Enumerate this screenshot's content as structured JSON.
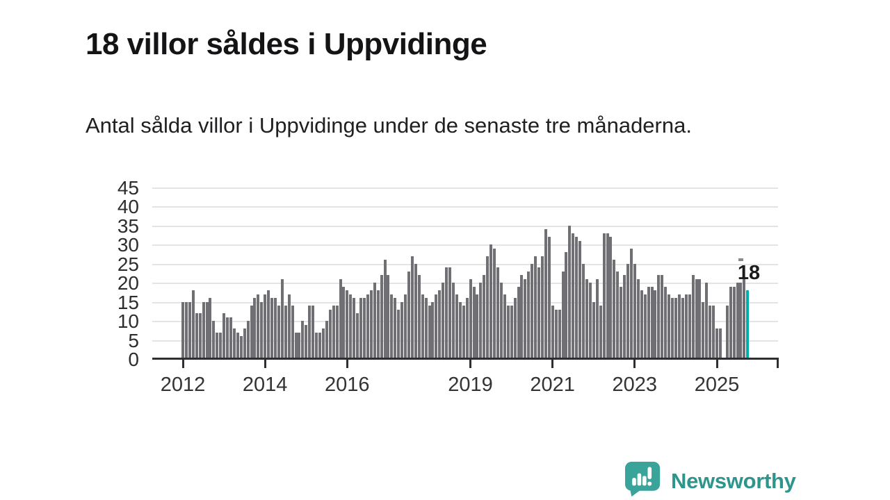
{
  "header": {
    "title": "18 villor såldes i Uppvidinge",
    "subtitle": "Antal sålda villor i Uppvidinge under de senaste tre månaderna."
  },
  "branding": {
    "name": "Newsworthy",
    "icon": "newsworthy-speech-bubble-chart-icon"
  },
  "colors": {
    "bar": "#707074",
    "highlight": "#00b0a8",
    "axis": "#2f2f33",
    "grid": "#e4e4e4",
    "text": "#2d2d30",
    "brand_teal_icon": "#3aa39a",
    "brand_teal_text": "#2e958c"
  },
  "chart_data": {
    "type": "bar",
    "title": "18 villor såldes i Uppvidinge",
    "subtitle": "Antal sålda villor i Uppvidinge under de senaste tre månaderna.",
    "unit": "antal sålda villor (rullande tre månader)",
    "frequency": "monthly",
    "start_month": "2012-01",
    "end_month": "2025-10",
    "ylim": [
      0,
      45
    ],
    "y_ticks": [
      0,
      5,
      10,
      15,
      20,
      25,
      30,
      35,
      40,
      45
    ],
    "grid": true,
    "x_ticks": [
      {
        "label": "2012",
        "month": 0
      },
      {
        "label": "2014",
        "month": 24
      },
      {
        "label": "2016",
        "month": 48
      },
      {
        "label": "2019",
        "month": 84
      },
      {
        "label": "2021",
        "month": 108
      },
      {
        "label": "2023",
        "month": 132
      },
      {
        "label": "2025",
        "month": 156
      }
    ],
    "right_edge_tick": true,
    "highlight_last": true,
    "last_value_label": "18",
    "values": [
      15,
      15,
      15,
      18,
      12,
      12,
      15,
      15,
      16,
      10,
      7,
      7,
      12,
      11,
      11,
      8,
      7,
      6,
      8,
      10,
      14,
      16,
      17,
      15,
      17,
      18,
      16,
      16,
      14,
      21,
      14,
      17,
      14,
      7,
      7,
      10,
      9,
      14,
      14,
      7,
      7,
      8,
      10,
      13,
      14,
      14,
      21,
      19,
      18,
      17,
      16,
      12,
      16,
      16,
      17,
      18,
      20,
      18,
      22,
      26,
      22,
      17,
      16,
      13,
      15,
      17,
      23,
      27,
      25,
      22,
      17,
      16,
      14,
      15,
      17,
      18,
      20,
      24,
      24,
      20,
      17,
      15,
      14,
      16,
      21,
      19,
      17,
      20,
      22,
      27,
      30,
      29,
      24,
      20,
      17,
      14,
      14,
      16,
      19,
      22,
      21,
      23,
      25,
      27,
      24,
      27,
      34,
      32,
      14,
      13,
      13,
      23,
      28,
      35,
      33,
      32,
      31,
      25,
      21,
      20,
      15,
      21,
      14,
      33,
      33,
      32,
      26,
      23,
      19,
      22,
      25,
      29,
      25,
      21,
      18,
      17,
      19,
      19,
      18,
      22,
      22,
      19,
      17,
      16,
      16,
      17,
      16,
      17,
      17,
      22,
      21,
      21,
      15,
      20,
      14,
      14,
      8,
      8,
      0,
      14,
      19,
      19,
      20,
      20,
      21,
      18
    ]
  }
}
